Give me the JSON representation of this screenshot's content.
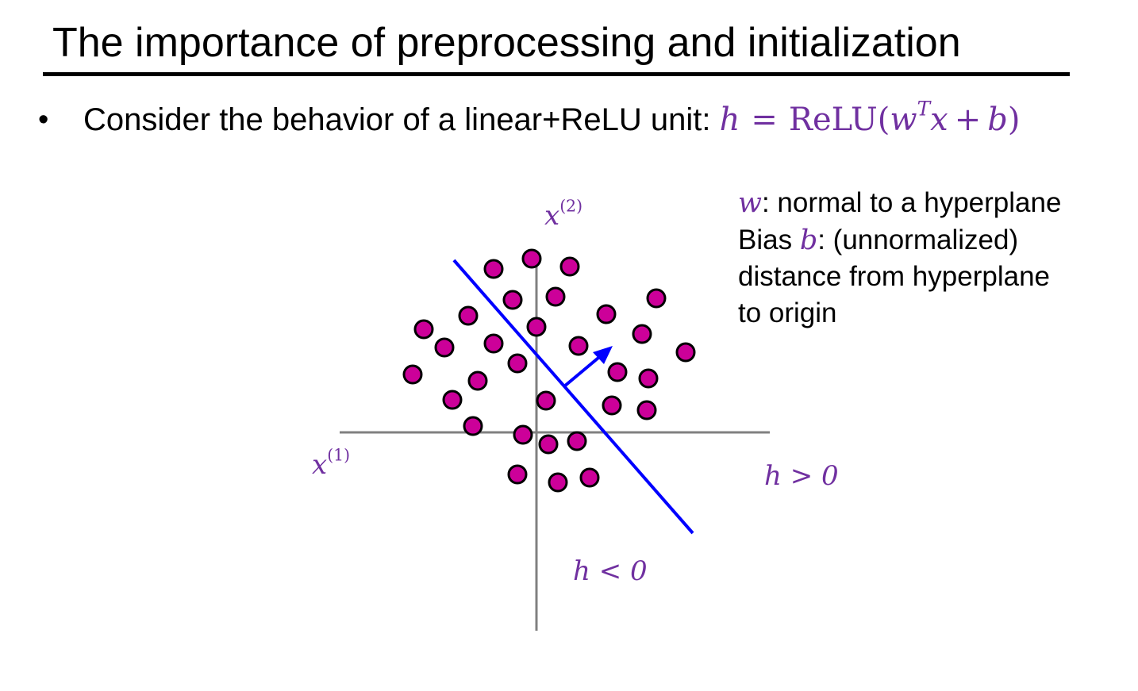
{
  "title": "The importance of preprocessing and initialization",
  "bullet": {
    "marker": "•",
    "text": "Consider the behavior of a linear+ReLU unit: ",
    "formula": {
      "h": "h",
      "eq": "=",
      "relu": "ReLU(",
      "w": "w",
      "T": "T",
      "x": "x",
      "plus": "+",
      "b": "b",
      "close": ")"
    }
  },
  "note": {
    "line1_var": "w",
    "line1_text": ": normal to a hyperplane",
    "line2_prefix": "Bias ",
    "line2_var": "b",
    "line2_text": ": (unnormalized)",
    "line3": "distance from hyperplane",
    "line4": "to origin"
  },
  "labels": {
    "x2_base": "x",
    "x2_sup": "(2)",
    "x1_base": "x",
    "x1_sup": "(1)",
    "h_pos": "h > 0",
    "h_neg": "h < 0"
  },
  "colors": {
    "accent": "#7030a0",
    "points": "#cc0099",
    "hyperplane": "#0000ff",
    "axes": "#808080"
  }
}
